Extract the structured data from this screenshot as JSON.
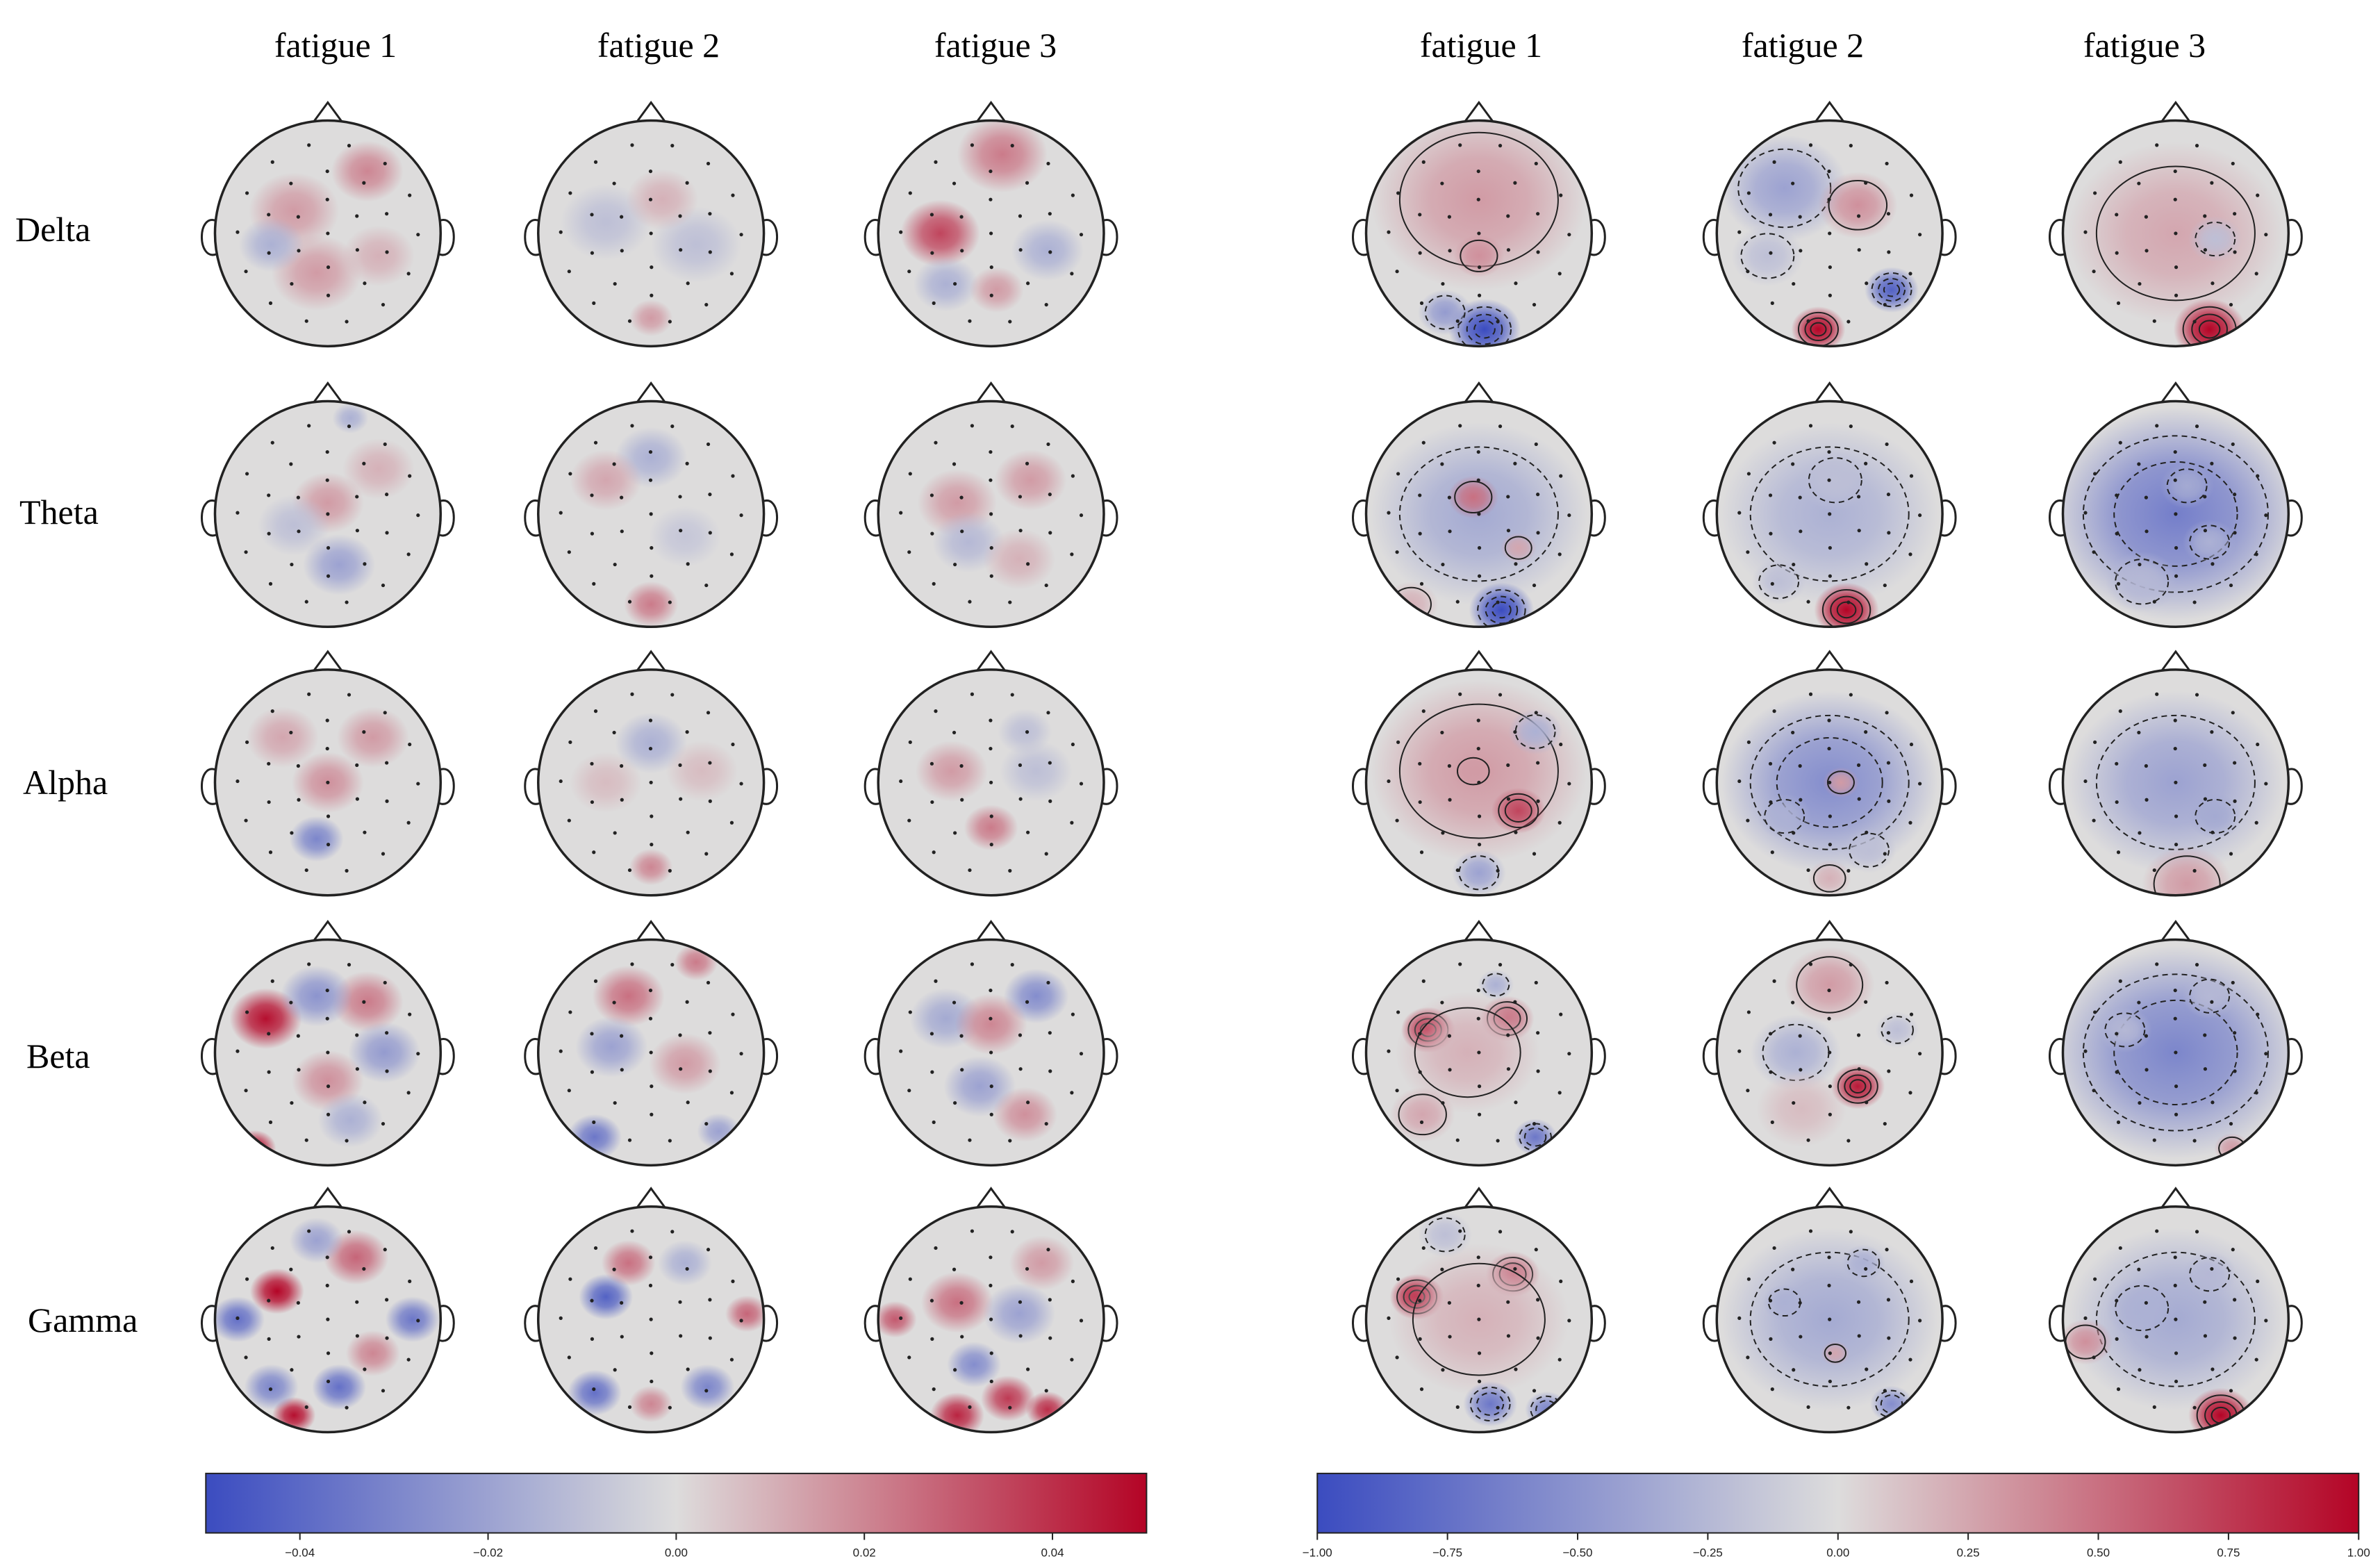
{
  "panels": [
    {
      "id": "left",
      "column_headers": [
        "fatigue 1",
        "fatigue 2",
        "fatigue 3"
      ],
      "colorbar": {
        "min": -0.05,
        "max": 0.05,
        "ticks": [
          -0.04,
          -0.02,
          0.0,
          0.02,
          0.04
        ],
        "tick_labels": [
          "−0.04",
          "−0.02",
          "0.00",
          "0.02",
          "0.04"
        ]
      },
      "contours": false
    },
    {
      "id": "right",
      "column_headers": [
        "fatigue 1",
        "fatigue 2",
        "fatigue 3"
      ],
      "colorbar": {
        "min": -1.0,
        "max": 1.0,
        "ticks": [
          -1.0,
          -0.75,
          -0.5,
          -0.25,
          0.0,
          0.25,
          0.5,
          0.75,
          1.0
        ],
        "tick_labels": [
          "−1.00",
          "−0.75",
          "−0.50",
          "−0.25",
          "0.00",
          "0.25",
          "0.50",
          "0.75",
          "1.00"
        ]
      },
      "contours": true
    }
  ],
  "row_labels": [
    "Delta",
    "Theta",
    "Alpha",
    "Beta",
    "Gamma"
  ],
  "colormap": {
    "name": "coolwarm",
    "low": "#3b4cc0",
    "mid": "#dddcdc",
    "high": "#b40426"
  },
  "topomaps": {
    "left": [
      [
        {
          "blobs": [
            [
              -0.3,
              0.2,
              0.25,
              0.3
            ],
            [
              0.35,
              0.55,
              0.2,
              0.4
            ],
            [
              -0.1,
              -0.35,
              0.25,
              0.3
            ],
            [
              -0.5,
              -0.1,
              0.18,
              -0.3
            ],
            [
              0.45,
              -0.2,
              0.2,
              0.2
            ]
          ]
        },
        {
          "blobs": [
            [
              -0.4,
              0.1,
              0.25,
              -0.2
            ],
            [
              0.4,
              -0.1,
              0.25,
              -0.2
            ],
            [
              0.1,
              0.3,
              0.2,
              0.2
            ],
            [
              0,
              -0.75,
              0.12,
              0.3
            ]
          ]
        },
        {
          "blobs": [
            [
              -0.45,
              0.0,
              0.22,
              0.7
            ],
            [
              0.1,
              0.7,
              0.25,
              0.45
            ],
            [
              0.5,
              -0.15,
              0.2,
              -0.3
            ],
            [
              -0.4,
              -0.45,
              0.18,
              -0.3
            ],
            [
              0.05,
              -0.5,
              0.15,
              0.3
            ]
          ]
        }
      ],
      [
        {
          "blobs": [
            [
              0.0,
              0.1,
              0.2,
              0.3
            ],
            [
              -0.3,
              -0.1,
              0.2,
              -0.2
            ],
            [
              0.1,
              -0.45,
              0.2,
              -0.4
            ],
            [
              0.45,
              0.4,
              0.2,
              0.2
            ],
            [
              0.2,
              0.85,
              0.1,
              -0.3
            ]
          ]
        },
        {
          "blobs": [
            [
              0.0,
              0.5,
              0.2,
              -0.3
            ],
            [
              -0.4,
              0.3,
              0.2,
              0.25
            ],
            [
              0.0,
              -0.8,
              0.15,
              0.45
            ],
            [
              0.3,
              -0.2,
              0.2,
              -0.15
            ]
          ]
        },
        {
          "blobs": [
            [
              -0.3,
              0.1,
              0.22,
              0.3
            ],
            [
              0.35,
              0.3,
              0.2,
              0.3
            ],
            [
              -0.2,
              -0.25,
              0.2,
              -0.25
            ],
            [
              0.25,
              -0.4,
              0.2,
              0.2
            ]
          ]
        }
      ],
      [
        {
          "blobs": [
            [
              -0.1,
              -0.5,
              0.15,
              -0.6
            ],
            [
              0.0,
              0.0,
              0.2,
              0.35
            ],
            [
              0.4,
              0.4,
              0.2,
              0.3
            ],
            [
              -0.4,
              0.4,
              0.2,
              0.25
            ]
          ]
        },
        {
          "blobs": [
            [
              0.0,
              0.35,
              0.2,
              -0.3
            ],
            [
              0.0,
              -0.75,
              0.12,
              0.4
            ],
            [
              -0.4,
              0.0,
              0.2,
              0.15
            ],
            [
              0.45,
              0.1,
              0.2,
              0.15
            ]
          ]
        },
        {
          "blobs": [
            [
              0.0,
              -0.4,
              0.15,
              0.45
            ],
            [
              -0.35,
              0.1,
              0.2,
              0.3
            ],
            [
              0.4,
              0.1,
              0.2,
              -0.2
            ],
            [
              0.3,
              0.45,
              0.15,
              -0.2
            ]
          ]
        }
      ],
      [
        {
          "blobs": [
            [
              -0.55,
              0.3,
              0.2,
              0.95
            ],
            [
              0.35,
              0.45,
              0.2,
              0.45
            ],
            [
              -0.65,
              -0.85,
              0.12,
              0.95
            ],
            [
              0.5,
              0.0,
              0.2,
              -0.45
            ],
            [
              -0.1,
              0.5,
              0.2,
              -0.5
            ],
            [
              0.0,
              -0.25,
              0.2,
              0.35
            ],
            [
              0.2,
              -0.6,
              0.18,
              -0.3
            ]
          ]
        },
        {
          "blobs": [
            [
              -0.2,
              0.5,
              0.2,
              0.5
            ],
            [
              0.4,
              0.8,
              0.12,
              0.45
            ],
            [
              -0.35,
              0.05,
              0.2,
              -0.4
            ],
            [
              -0.5,
              -0.75,
              0.15,
              -0.7
            ],
            [
              0.3,
              -0.1,
              0.2,
              0.3
            ],
            [
              0.6,
              -0.7,
              0.12,
              -0.4
            ]
          ]
        },
        {
          "blobs": [
            [
              0.4,
              0.5,
              0.18,
              -0.55
            ],
            [
              -0.4,
              0.3,
              0.2,
              -0.35
            ],
            [
              0.0,
              0.25,
              0.2,
              0.4
            ],
            [
              -0.1,
              -0.3,
              0.2,
              -0.4
            ],
            [
              0.3,
              -0.55,
              0.18,
              0.35
            ]
          ]
        }
      ],
      [
        {
          "blobs": [
            [
              -0.45,
              0.25,
              0.15,
              1.0
            ],
            [
              0.25,
              0.55,
              0.18,
              0.55
            ],
            [
              -0.8,
              0.0,
              0.15,
              -0.75
            ],
            [
              0.75,
              0.0,
              0.15,
              -0.7
            ],
            [
              -0.3,
              -0.85,
              0.12,
              0.95
            ],
            [
              0.1,
              -0.6,
              0.15,
              -0.75
            ],
            [
              -0.5,
              -0.6,
              0.15,
              -0.6
            ],
            [
              -0.1,
              0.7,
              0.15,
              -0.4
            ],
            [
              0.4,
              -0.3,
              0.15,
              0.4
            ]
          ]
        },
        {
          "blobs": [
            [
              -0.4,
              0.2,
              0.15,
              -0.85
            ],
            [
              -0.2,
              0.5,
              0.15,
              0.5
            ],
            [
              0.85,
              0.05,
              0.12,
              0.55
            ],
            [
              -0.5,
              -0.65,
              0.15,
              -0.75
            ],
            [
              0.5,
              -0.6,
              0.15,
              -0.6
            ],
            [
              0.0,
              -0.75,
              0.12,
              0.4
            ],
            [
              0.3,
              0.5,
              0.15,
              -0.3
            ]
          ]
        },
        {
          "blobs": [
            [
              -0.3,
              -0.85,
              0.15,
              0.85
            ],
            [
              0.15,
              -0.7,
              0.15,
              0.75
            ],
            [
              0.5,
              -0.8,
              0.12,
              0.8
            ],
            [
              -0.15,
              -0.4,
              0.15,
              -0.55
            ],
            [
              -0.3,
              0.15,
              0.2,
              0.5
            ],
            [
              0.25,
              0.05,
              0.2,
              -0.4
            ],
            [
              0.45,
              0.5,
              0.18,
              0.3
            ],
            [
              -0.85,
              0.0,
              0.12,
              0.6
            ]
          ]
        }
      ]
    ],
    "right": [
      [
        {
          "blobs": [
            [
              0.0,
              0.3,
              0.6,
              0.3
            ],
            [
              0.0,
              -0.2,
              0.14,
              0.35
            ],
            [
              0.05,
              -0.85,
              0.2,
              -1.0
            ],
            [
              -0.3,
              -0.7,
              0.15,
              -0.45
            ]
          ]
        },
        {
          "blobs": [
            [
              -0.4,
              0.4,
              0.35,
              -0.4
            ],
            [
              0.25,
              0.25,
              0.22,
              0.35
            ],
            [
              -0.1,
              -0.85,
              0.15,
              1.0
            ],
            [
              0.55,
              -0.5,
              0.15,
              -0.85
            ],
            [
              -0.55,
              -0.2,
              0.2,
              -0.2
            ]
          ]
        },
        {
          "blobs": [
            [
              0.0,
              0.0,
              0.6,
              0.25
            ],
            [
              0.3,
              -0.85,
              0.2,
              1.0
            ],
            [
              0.35,
              -0.05,
              0.15,
              -0.2
            ]
          ]
        }
      ],
      [
        {
          "blobs": [
            [
              0.0,
              0.0,
              0.6,
              -0.35
            ],
            [
              -0.05,
              0.15,
              0.14,
              0.5
            ],
            [
              0.2,
              -0.85,
              0.18,
              -1.0
            ],
            [
              -0.6,
              -0.8,
              0.15,
              0.2
            ],
            [
              0.35,
              -0.3,
              0.1,
              0.25
            ]
          ]
        },
        {
          "blobs": [
            [
              0.0,
              0.0,
              0.6,
              -0.3
            ],
            [
              0.15,
              -0.85,
              0.18,
              1.0
            ],
            [
              0.05,
              0.3,
              0.2,
              -0.2
            ],
            [
              -0.45,
              -0.6,
              0.15,
              -0.2
            ]
          ]
        },
        {
          "blobs": [
            [
              0.0,
              0.0,
              0.7,
              -0.65
            ],
            [
              0.1,
              0.25,
              0.15,
              -0.35
            ],
            [
              0.3,
              -0.25,
              0.15,
              -0.3
            ],
            [
              -0.3,
              -0.6,
              0.2,
              -0.25
            ]
          ]
        }
      ],
      [
        {
          "blobs": [
            [
              0.0,
              0.1,
              0.6,
              0.3
            ],
            [
              0.35,
              -0.25,
              0.15,
              0.7
            ],
            [
              -0.05,
              0.1,
              0.12,
              0.3
            ],
            [
              0.0,
              -0.8,
              0.15,
              -0.4
            ],
            [
              0.5,
              0.45,
              0.15,
              -0.3
            ]
          ]
        },
        {
          "blobs": [
            [
              0.0,
              0.0,
              0.6,
              -0.55
            ],
            [
              -0.4,
              -0.3,
              0.15,
              -0.3
            ],
            [
              0.1,
              0.0,
              0.1,
              0.3
            ],
            [
              0.0,
              -0.85,
              0.12,
              0.2
            ],
            [
              0.35,
              -0.6,
              0.15,
              -0.2
            ]
          ]
        },
        {
          "blobs": [
            [
              0.0,
              0.0,
              0.6,
              -0.4
            ],
            [
              0.35,
              -0.3,
              0.15,
              -0.35
            ],
            [
              0.1,
              -0.9,
              0.25,
              0.3
            ]
          ]
        }
      ],
      [
        {
          "blobs": [
            [
              -0.45,
              0.2,
              0.15,
              0.95
            ],
            [
              0.25,
              0.3,
              0.15,
              0.55
            ],
            [
              -0.1,
              0.0,
              0.4,
              0.2
            ],
            [
              0.5,
              -0.75,
              0.12,
              -0.7
            ],
            [
              -0.5,
              -0.55,
              0.18,
              0.25
            ],
            [
              0.15,
              0.6,
              0.1,
              -0.3
            ]
          ]
        },
        {
          "blobs": [
            [
              0.25,
              -0.3,
              0.15,
              0.9
            ],
            [
              -0.3,
              0.0,
              0.25,
              -0.3
            ],
            [
              0.0,
              0.6,
              0.25,
              0.3
            ],
            [
              -0.25,
              -0.5,
              0.25,
              0.15
            ],
            [
              0.6,
              0.2,
              0.12,
              -0.2
            ]
          ]
        },
        {
          "blobs": [
            [
              0.0,
              0.0,
              0.7,
              -0.6
            ],
            [
              -0.45,
              0.2,
              0.15,
              -0.25
            ],
            [
              0.3,
              0.5,
              0.15,
              -0.25
            ],
            [
              0.5,
              -0.85,
              0.1,
              0.3
            ]
          ]
        }
      ],
      [
        {
          "blobs": [
            [
              -0.55,
              0.2,
              0.15,
              1.0
            ],
            [
              0.3,
              0.4,
              0.15,
              0.55
            ],
            [
              0.0,
              0.0,
              0.5,
              0.2
            ],
            [
              0.1,
              -0.75,
              0.15,
              -0.7
            ],
            [
              0.6,
              -0.8,
              0.12,
              -0.6
            ],
            [
              -0.3,
              0.75,
              0.15,
              -0.2
            ]
          ]
        },
        {
          "blobs": [
            [
              0.0,
              0.0,
              0.6,
              -0.35
            ],
            [
              -0.4,
              0.15,
              0.12,
              -0.3
            ],
            [
              0.3,
              0.5,
              0.12,
              -0.3
            ],
            [
              0.05,
              -0.3,
              0.08,
              0.25
            ],
            [
              0.55,
              -0.75,
              0.12,
              -0.55
            ]
          ]
        },
        {
          "blobs": [
            [
              0.0,
              0.0,
              0.6,
              -0.35
            ],
            [
              -0.3,
              0.1,
              0.2,
              -0.3
            ],
            [
              0.4,
              -0.85,
              0.18,
              1.0
            ],
            [
              -0.8,
              -0.2,
              0.15,
              0.35
            ],
            [
              0.3,
              0.4,
              0.15,
              -0.25
            ]
          ]
        }
      ]
    ]
  }
}
